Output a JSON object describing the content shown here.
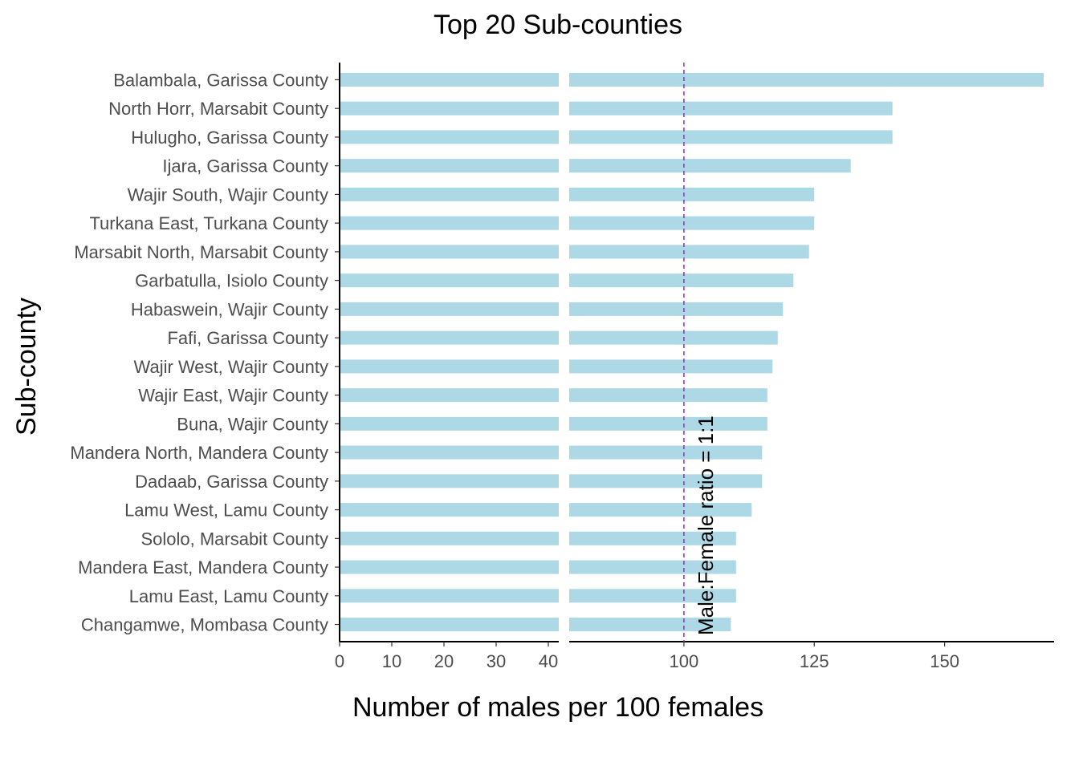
{
  "chart_data": {
    "type": "bar",
    "orientation": "horizontal",
    "title": "Top 20 Sub-counties",
    "xlabel": "Number of males per 100 females",
    "ylabel": "Sub-county",
    "bar_color": "#add8e6",
    "axis_break": {
      "left_segment": {
        "range": [
          0,
          42
        ],
        "ticks": [
          0,
          10,
          20,
          30,
          40
        ]
      },
      "right_segment": {
        "range": [
          78,
          171
        ],
        "ticks": [
          100,
          125,
          150
        ]
      }
    },
    "categories": [
      "Balambala, Garissa County",
      "North Horr, Marsabit County",
      "Hulugho, Garissa County",
      "Ijara, Garissa County",
      "Wajir South, Wajir County",
      "Turkana East, Turkana County",
      "Marsabit North, Marsabit County",
      "Garbatulla, Isiolo County",
      "Habaswein, Wajir County",
      "Fafi, Garissa County",
      "Wajir West, Wajir County",
      "Wajir East, Wajir County",
      "Buna, Wajir County",
      "Mandera North, Mandera County",
      "Dadaab, Garissa County",
      "Lamu West, Lamu County",
      "Sololo, Marsabit County",
      "Mandera East, Mandera County",
      "Lamu East, Lamu County",
      "Changamwe, Mombasa County"
    ],
    "values": [
      169,
      140,
      140,
      132,
      125,
      125,
      124,
      121,
      119,
      118,
      117,
      116,
      116,
      115,
      115,
      113,
      110,
      110,
      110,
      109
    ],
    "reference_line": {
      "value": 100,
      "label": "Male:Female ratio = 1:1",
      "color": "#9932cc",
      "style": "dashed"
    },
    "grid": false,
    "legend": "none"
  }
}
